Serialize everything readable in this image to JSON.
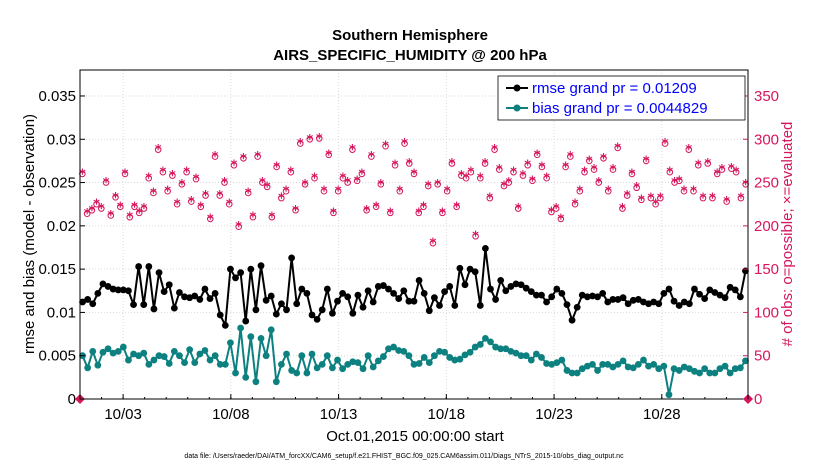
{
  "chart_data": {
    "type": "line",
    "title_line1": "Southern Hemisphere",
    "title_line2": "AIRS_SPECIFIC_HUMIDITY @ 200 hPa",
    "xlabel": "Oct.01,2015 00:00:00 start",
    "ylabel_left": "rmse and bias (model - observation)",
    "ylabel_right": "# of obs: o=possible; ×=evaluated",
    "x_tick_labels": [
      "10/03",
      "10/08",
      "10/13",
      "10/18",
      "10/23",
      "10/28"
    ],
    "x_tick_days": [
      3,
      8,
      13,
      18,
      23,
      28
    ],
    "xlim": [
      1,
      32
    ],
    "ylim_left": [
      0,
      0.038
    ],
    "y_ticks_left": [
      "0",
      "0.005",
      "0.01",
      "0.015",
      "0.02",
      "0.025",
      "0.03",
      "0.035"
    ],
    "y_tick_values_left": [
      0,
      0.005,
      0.01,
      0.015,
      0.02,
      0.025,
      0.03,
      0.035
    ],
    "ylim_right": [
      0,
      380
    ],
    "y_ticks_right": [
      "0",
      "50",
      "100",
      "150",
      "200",
      "250",
      "300",
      "350"
    ],
    "y_tick_values_right": [
      0,
      50,
      100,
      150,
      200,
      250,
      300,
      350
    ],
    "colors": {
      "rmse": "#000000",
      "bias": "#0d8080",
      "obs": "#d6175e",
      "legend_text": "#0000ff"
    },
    "series": [
      {
        "name": "rmse",
        "legend": "rmse grand pr = 0.01209",
        "color": "#000000",
        "values": [
          0.0112,
          0.0115,
          0.011,
          0.0122,
          0.0133,
          0.013,
          0.0127,
          0.0126,
          0.0126,
          0.0125,
          0.0109,
          0.0153,
          0.0109,
          0.0153,
          0.0104,
          0.0146,
          0.0124,
          0.0132,
          0.0105,
          0.0123,
          0.0118,
          0.0117,
          0.0119,
          0.0115,
          0.0127,
          0.0116,
          0.0122,
          0.0097,
          0.0085,
          0.015,
          0.014,
          0.0146,
          0.009,
          0.015,
          0.0103,
          0.0154,
          0.0114,
          0.0119,
          0.0098,
          0.011,
          0.0103,
          0.0163,
          0.011,
          0.0127,
          0.0122,
          0.0097,
          0.0092,
          0.0103,
          0.0127,
          0.0099,
          0.0113,
          0.0122,
          0.0118,
          0.0099,
          0.012,
          0.0106,
          0.0125,
          0.0112,
          0.013,
          0.0131,
          0.0127,
          0.0122,
          0.0116,
          0.0125,
          0.0113,
          0.0113,
          0.0137,
          0.0122,
          0.0102,
          0.0117,
          0.0108,
          0.0124,
          0.013,
          0.0108,
          0.0151,
          0.0132,
          0.015,
          0.0147,
          0.0108,
          0.0174,
          0.0127,
          0.0115,
          0.0137,
          0.0125,
          0.013,
          0.0133,
          0.0132,
          0.0128,
          0.0124,
          0.012,
          0.012,
          0.0112,
          0.0118,
          0.0127,
          0.0122,
          0.0109,
          0.0091,
          0.0106,
          0.012,
          0.0118,
          0.0119,
          0.0118,
          0.0122,
          0.0112,
          0.0115,
          0.0115,
          0.0117,
          0.011,
          0.0114,
          0.0115,
          0.0112,
          0.011,
          0.0112,
          0.011,
          0.0122,
          0.0127,
          0.0113,
          0.0108,
          0.0112,
          0.011,
          0.0127,
          0.0121,
          0.0116,
          0.0126,
          0.0123,
          0.012,
          0.0117,
          0.0129,
          0.0126,
          0.0118,
          0.0148
        ]
      },
      {
        "name": "bias",
        "legend": "bias grand pr = 0.0044829",
        "color": "#0d8080",
        "values": [
          0.005,
          0.0036,
          0.0055,
          0.0039,
          0.0054,
          0.0058,
          0.0053,
          0.0055,
          0.006,
          0.0045,
          0.0052,
          0.005,
          0.0053,
          0.004,
          0.0045,
          0.005,
          0.0049,
          0.0041,
          0.0055,
          0.005,
          0.0042,
          0.0057,
          0.0042,
          0.0052,
          0.0056,
          0.0045,
          0.005,
          0.004,
          0.004,
          0.0065,
          0.003,
          0.0082,
          0.0025,
          0.0072,
          0.002,
          0.007,
          0.005,
          0.008,
          0.002,
          0.004,
          0.0052,
          0.0033,
          0.003,
          0.005,
          0.003,
          0.0052,
          0.0036,
          0.004,
          0.005,
          0.0036,
          0.0045,
          0.0035,
          0.004,
          0.0043,
          0.0042,
          0.0035,
          0.005,
          0.0037,
          0.0044,
          0.0049,
          0.0058,
          0.006,
          0.0056,
          0.0055,
          0.005,
          0.004,
          0.0041,
          0.0048,
          0.0042,
          0.005,
          0.0055,
          0.0054,
          0.0048,
          0.0045,
          0.0046,
          0.0051,
          0.0054,
          0.006,
          0.0063,
          0.007,
          0.0066,
          0.006,
          0.0058,
          0.0058,
          0.0055,
          0.0053,
          0.005,
          0.005,
          0.0045,
          0.0052,
          0.0048,
          0.0041,
          0.004,
          0.0042,
          0.0045,
          0.0033,
          0.003,
          0.003,
          0.0035,
          0.0038,
          0.004,
          0.0033,
          0.004,
          0.004,
          0.0037,
          0.004,
          0.0044,
          0.0037,
          0.0036,
          0.004,
          0.0045,
          0.0038,
          0.004,
          0.0035,
          0.0038,
          0.0005,
          0.0035,
          0.0033,
          0.0037,
          0.0035,
          0.0032,
          0.003,
          0.0035,
          0.003,
          0.003,
          0.0035,
          0.0038,
          0.003,
          0.0035,
          0.0036,
          0.0044
        ]
      }
    ],
    "obs_evaluated": [
      260,
      214,
      218,
      225,
      220,
      250,
      212,
      233,
      222,
      260,
      210,
      222,
      215,
      220,
      255,
      238,
      288,
      262,
      240,
      258,
      225,
      248,
      262,
      228,
      254,
      222,
      235,
      208,
      280,
      235,
      250,
      225,
      270,
      199,
      278,
      238,
      210,
      280,
      250,
      245,
      210,
      268,
      232,
      240,
      262,
      218,
      295,
      248,
      300,
      255,
      301,
      240,
      282,
      215,
      240,
      255,
      250,
      288,
      252,
      260,
      218,
      280,
      222,
      248,
      292,
      215,
      270,
      240,
      295,
      272,
      260,
      215,
      222,
      246,
      180,
      248,
      215,
      240,
      272,
      222,
      258,
      255,
      262,
      188,
      255,
      272,
      232,
      288,
      265,
      246,
      250,
      262,
      220,
      258,
      270,
      252,
      282,
      268,
      255,
      216,
      220,
      208,
      268,
      280,
      225,
      240,
      262,
      275,
      265,
      250,
      278,
      240,
      265,
      290,
      220,
      235,
      260,
      244,
      230,
      275,
      232,
      225,
      232,
      295,
      262,
      250,
      252,
      240,
      288,
      240,
      270,
      232,
      272,
      232,
      260,
      265,
      228,
      266,
      262,
      232,
      248
    ]
  },
  "footer": "data file: /Users/raeder/DAI/ATM_forcXX/CAM6_setup/f.e21.FHIST_BGC.f09_025.CAM6assim.011/Diags_NTrS_2015-10/obs_diag_output.nc"
}
